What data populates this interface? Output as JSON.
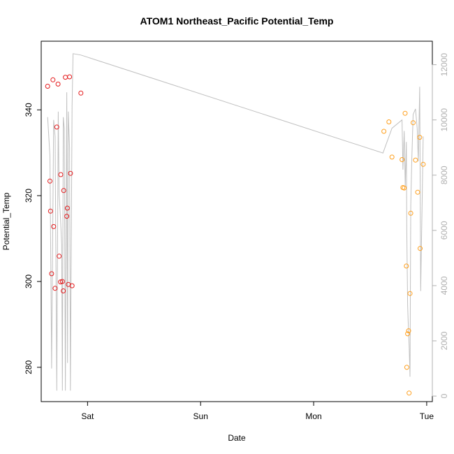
{
  "chart_data": {
    "type": "scatter",
    "title": "ATOM1 Northeast_Pacific Potential_Temp",
    "xlabel": "Date",
    "ylabel": "Potential_Temp",
    "x_ticks": [
      {
        "value": 1.0,
        "label": "Sat"
      },
      {
        "value": 2.0,
        "label": "Sun"
      },
      {
        "value": 3.0,
        "label": "Mon"
      },
      {
        "value": 4.0,
        "label": "Tue"
      }
    ],
    "y_ticks": [
      280,
      300,
      320,
      340
    ],
    "y2_ticks": [
      0,
      2000,
      4000,
      6000,
      8000,
      10000,
      12000
    ],
    "xlim": [
      0.59,
      4.05
    ],
    "ylim": [
      272,
      356
    ],
    "y2lim": [
      -200,
      12850
    ],
    "grid": false,
    "colors": {
      "group1": "#e41a1c",
      "group2": "#ff9f1c",
      "line": "#c0c0c0",
      "right_axis": "#b0b0b0"
    },
    "series": [
      {
        "color": "#e41a1c",
        "x": [
          0.647,
          0.667,
          0.672,
          0.682,
          0.694,
          0.7,
          0.713,
          0.728,
          0.739,
          0.749,
          0.761,
          0.763,
          0.777,
          0.785,
          0.789,
          0.804,
          0.816,
          0.821,
          0.83,
          0.841,
          0.849,
          0.863,
          0.941
        ],
        "y": [
          345.5,
          323.4,
          316.4,
          301.8,
          347.0,
          312.8,
          298.4,
          336.0,
          346.0,
          305.9,
          299.9,
          324.9,
          300.0,
          297.8,
          321.2,
          347.6,
          315.2,
          317.1,
          299.3,
          347.7,
          325.2,
          299.0,
          343.9
        ]
      },
      {
        "color": "#ff9f1c",
        "x": [
          3.621,
          3.666,
          3.693,
          3.782,
          3.789,
          3.801,
          3.809,
          3.82,
          3.824,
          3.831,
          3.84,
          3.844,
          3.852,
          3.859,
          3.88,
          3.901,
          3.92,
          3.938,
          3.942,
          3.969
        ],
        "y": [
          335.0,
          337.2,
          329.0,
          328.4,
          321.9,
          321.8,
          339.2,
          303.6,
          280.0,
          287.8,
          288.5,
          274.0,
          297.2,
          315.9,
          337.0,
          328.3,
          320.8,
          333.6,
          307.7,
          327.3
        ]
      }
    ],
    "line_series": {
      "color": "#c0c0c0",
      "x": [
        0.647,
        0.667,
        0.682,
        0.7,
        0.713,
        0.728,
        0.741,
        0.749,
        0.761,
        0.771,
        0.777,
        0.785,
        0.794,
        0.804,
        0.816,
        0.823,
        0.83,
        0.841,
        0.848,
        0.863,
        0.872,
        0.941,
        3.613,
        3.693,
        3.782,
        3.79,
        3.801,
        3.81,
        3.82,
        3.824,
        3.831,
        3.836,
        3.845,
        3.852,
        3.859,
        3.868,
        3.88,
        3.901,
        3.916,
        3.926,
        3.938,
        3.947,
        3.969
      ],
      "y2": [
        10100,
        8700,
        1000,
        10000,
        9400,
        200,
        10300,
        7300,
        6400,
        5500,
        200,
        10100,
        9700,
        200,
        11000,
        1200,
        10300,
        9000,
        200,
        10500,
        12400,
        12350,
        8800,
        9700,
        10000,
        8200,
        9600,
        7600,
        9200,
        6000,
        3300,
        2700,
        1800,
        700,
        6900,
        8500,
        10200,
        10400,
        9700,
        8500,
        11200,
        3800,
        9400
      ]
    }
  }
}
